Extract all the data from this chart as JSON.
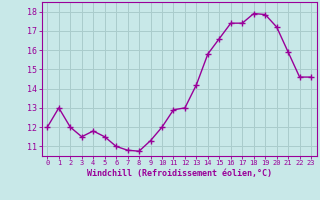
{
  "x": [
    0,
    1,
    2,
    3,
    4,
    5,
    6,
    7,
    8,
    9,
    10,
    11,
    12,
    13,
    14,
    15,
    16,
    17,
    18,
    19,
    20,
    21,
    22,
    23
  ],
  "y": [
    12.0,
    13.0,
    12.0,
    11.5,
    11.8,
    11.5,
    11.0,
    10.8,
    10.75,
    11.3,
    12.0,
    12.9,
    13.0,
    14.2,
    15.8,
    16.6,
    17.4,
    17.4,
    17.9,
    17.85,
    17.2,
    15.9,
    14.6,
    14.6
  ],
  "line_color": "#990099",
  "marker": "+",
  "bg_color": "#c8e8e8",
  "grid_color": "#aacccc",
  "xlabel": "Windchill (Refroidissement éolien,°C)",
  "xlabel_color": "#990099",
  "tick_color": "#990099",
  "ylim": [
    10.5,
    18.5
  ],
  "xlim": [
    -0.5,
    23.5
  ],
  "yticks": [
    11,
    12,
    13,
    14,
    15,
    16,
    17,
    18
  ],
  "xtick_labels": [
    "0",
    "1",
    "2",
    "3",
    "4",
    "5",
    "6",
    "7",
    "8",
    "9",
    "10",
    "11",
    "12",
    "13",
    "14",
    "15",
    "16",
    "17",
    "18",
    "19",
    "20",
    "21",
    "22",
    "23"
  ],
  "line_width": 1.0,
  "marker_size": 4
}
